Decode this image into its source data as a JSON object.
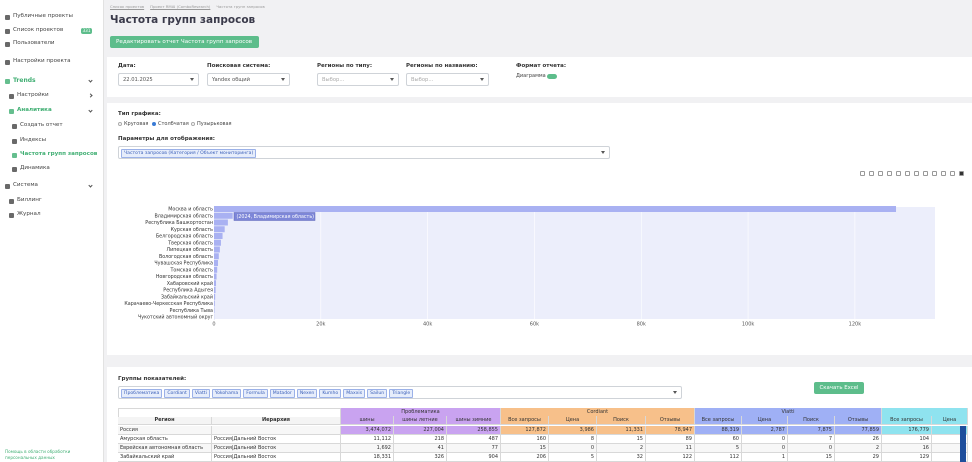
{
  "sidebar": {
    "items": [
      "Публичные проекты",
      "Список проектов",
      "Пользователи",
      "Настройки проекта",
      "Trends",
      "Настройки",
      "Аналитика",
      "Создать отчет",
      "Индексы",
      "Частота групп запросов",
      "Динамика",
      "Система",
      "Биллинг",
      "Журнал"
    ],
    "badge": "331",
    "footer": "Помощь в области обработки персональных данных"
  },
  "breadcrumb": [
    "Список проектов",
    "Проект RMAI (ComboResearch)",
    "Частота групп запросов"
  ],
  "title": "Частота групп запросов",
  "edit_button": "Редактировать отчет Частота групп запросов",
  "filters": [
    {
      "label": "Дата:",
      "value": "22.01.2025"
    },
    {
      "label": "Поисковая система:",
      "value": "Yandex общий"
    },
    {
      "label": "Регионы по типу:",
      "value": "Выбор..."
    },
    {
      "label": "Регионы по названию:",
      "value": "Выбор..."
    },
    {
      "label": "Формат отчета:",
      "value": "Диаграмма"
    }
  ],
  "chart_settings": {
    "type_label": "Тип графика:",
    "options": [
      "Круговая",
      "Столбчатая",
      "Пузырьковая"
    ],
    "params_label": "Параметры для отображения:",
    "param_tag": "Частота запросов (Категория / Объект мониторинга)"
  },
  "chart_data": {
    "type": "hbar",
    "categories": [
      "Москва и область",
      "Владимирская область",
      "Республика Башкортостан",
      "Курская область",
      "Белгородская область",
      "Тверская область",
      "Липецкая область",
      "Вологодская область",
      "Чувашская Республика",
      "Томская область",
      "Новгородская область",
      "Хабаровский край",
      "Республика Адыгея",
      "Забайкальский край",
      "Карачаево-Черкесская Республика",
      "Республика Тыва",
      "Чукотский автономный округ"
    ],
    "values": [
      127700,
      3500,
      2600,
      2000,
      1600,
      1300,
      1100,
      900,
      750,
      600,
      480,
      380,
      300,
      220,
      150,
      90,
      40
    ],
    "color": "#a9b1f2",
    "xlim": [
      0,
      135000
    ],
    "xticks": [
      0,
      {
        "value": 20000,
        "label": "20k"
      },
      {
        "value": 40000,
        "label": "40k"
      },
      {
        "value": 60000,
        "label": "60k"
      },
      {
        "value": 80000,
        "label": "80k"
      },
      {
        "value": 100000,
        "label": "100k"
      },
      {
        "value": 120000,
        "label": "120k"
      }
    ],
    "tooltip": "(2024, Владимирская область)"
  },
  "groups": {
    "label": "Группы показателей:",
    "tags": [
      "Проблематика",
      "Cordiant",
      "Viatti",
      "Yokohama",
      "Formula",
      "Matador",
      "Nexen",
      "Kumho",
      "Maxxis",
      "Sailun",
      "Triangle"
    ],
    "download_button": "Скачать Excel"
  },
  "table": {
    "columns": [
      "Регион",
      "Иерархия"
    ],
    "groups": [
      {
        "name": "Проблематика",
        "color": "#c9a3f0",
        "columns": [
          "шины",
          "шины летние",
          "шины зимние"
        ]
      },
      {
        "name": "Cordiant",
        "color": "#f7c08a",
        "columns": [
          "Все запросы",
          "Цена",
          "Поиск",
          "Отзывы"
        ]
      },
      {
        "name": "Viatti",
        "color": "#9fb0f5",
        "columns": [
          "Все запросы",
          "Цена",
          "Поиск",
          "Отзывы"
        ]
      },
      {
        "color": "#8fe3ef",
        "columns": [
          "Все запросы",
          "Цена"
        ]
      }
    ],
    "rows": [
      [
        "Россия",
        "",
        "3,474,072",
        "227,004",
        "258,855",
        "127,872",
        "3,986",
        "11,331",
        "78,947",
        "88,319",
        "2,787",
        "7,875",
        "77,859",
        "176,779"
      ],
      [
        "Амурская область",
        "Россия|Дальний Восток",
        "11,112",
        "218",
        "487",
        "160",
        "8",
        "15",
        "89",
        "60",
        "0",
        "7",
        "26",
        "104"
      ],
      [
        "Еврейская автономная область",
        "Россия|Дальний Восток",
        "1,692",
        "41",
        "77",
        "15",
        "0",
        "2",
        "11",
        "5",
        "0",
        "0",
        "2",
        "16"
      ],
      [
        "Забайкальский край",
        "Россия|Дальний Восток",
        "18,331",
        "326",
        "904",
        "206",
        "5",
        "32",
        "122",
        "112",
        "1",
        "15",
        "29",
        "129"
      ]
    ]
  }
}
